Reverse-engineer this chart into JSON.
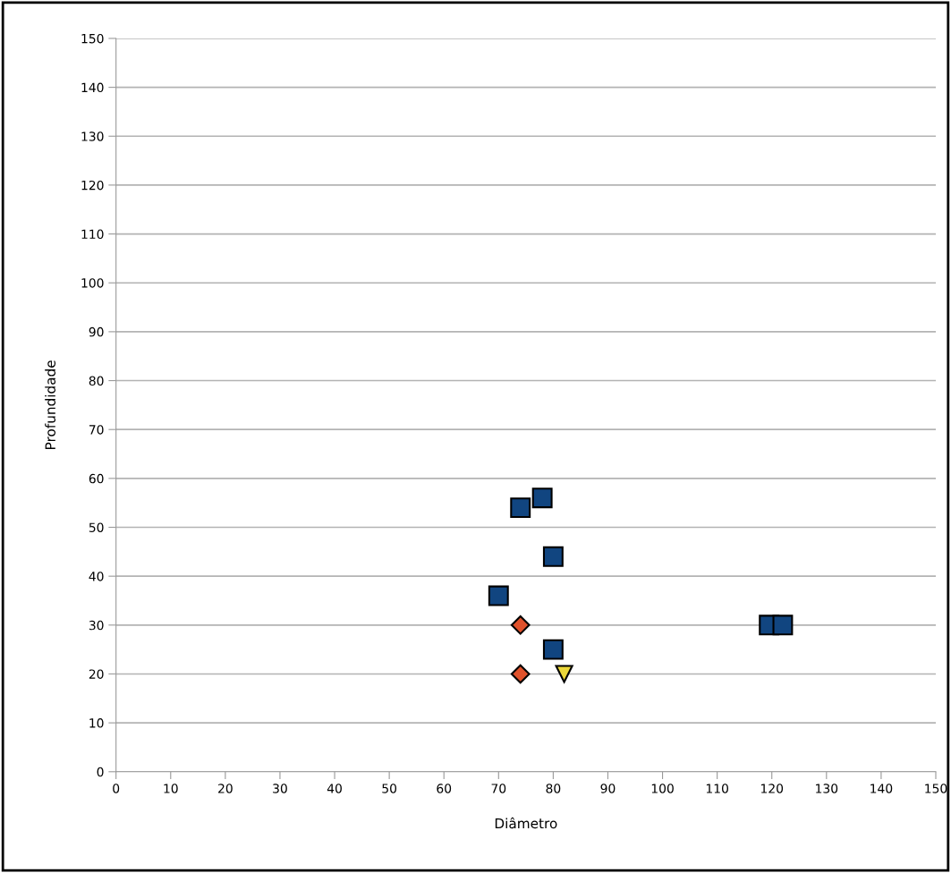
{
  "chart_data": {
    "type": "scatter",
    "xlabel": "Diâmetro",
    "ylabel": "Profundidade",
    "xlim": [
      0,
      150
    ],
    "xticks": [
      0,
      10,
      20,
      30,
      40,
      50,
      60,
      70,
      80,
      90,
      100,
      110,
      120,
      130,
      140,
      150
    ],
    "ylim": [
      0,
      150
    ],
    "yticks": [
      0,
      10,
      20,
      30,
      40,
      50,
      60,
      70,
      80,
      90,
      100,
      110,
      120,
      130,
      140,
      150
    ],
    "grid": "y",
    "legend": false,
    "series": [
      {
        "color": "#114580",
        "marker": "square",
        "x": [
          74,
          78,
          80,
          70,
          80,
          119.5,
          122
        ],
        "values": [
          54,
          56,
          44,
          36,
          25,
          30,
          30
        ]
      },
      {
        "color": "#e0522c",
        "marker": "diamond",
        "x": [
          74,
          74
        ],
        "values": [
          30,
          20
        ]
      },
      {
        "color": "#ecd839",
        "marker": "triangle",
        "x": [
          82
        ],
        "values": [
          20
        ]
      }
    ]
  }
}
